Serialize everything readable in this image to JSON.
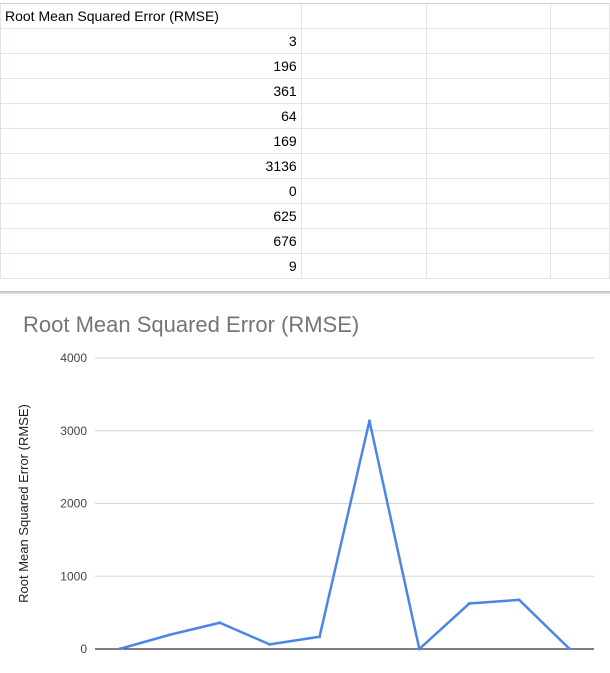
{
  "sheet": {
    "header": "Root Mean Squared Error (RMSE)",
    "values": [
      "3",
      "196",
      "361",
      "64",
      "169",
      "3136",
      "0",
      "625",
      "676",
      "9"
    ]
  },
  "chart_data": {
    "type": "line",
    "title": "Root Mean Squared Error (RMSE)",
    "ylabel": "Root Mean Squared Error (RMSE)",
    "xlabel": "",
    "ylim": [
      0,
      4000
    ],
    "yticks": [
      0,
      1000,
      2000,
      3000,
      4000
    ],
    "x": [
      1,
      2,
      3,
      4,
      5,
      6,
      7,
      8,
      9,
      10
    ],
    "series": [
      {
        "values": [
          3,
          196,
          361,
          64,
          169,
          3136,
          0,
          625,
          676,
          9
        ],
        "color": "#4a86e8"
      }
    ],
    "grid": true,
    "legend": "none"
  }
}
